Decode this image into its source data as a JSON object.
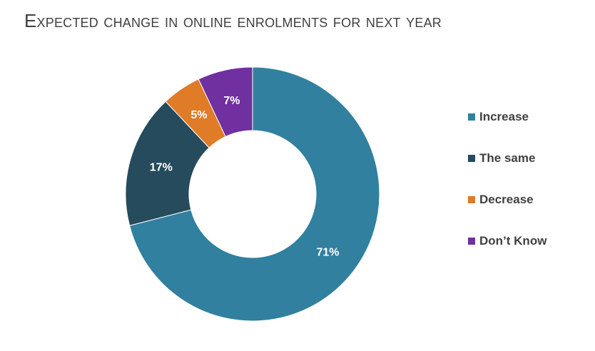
{
  "chart_data": {
    "type": "pie",
    "title": "Expected change in online enrolments for next year",
    "categories": [
      "Increase",
      "The same",
      "Decrease",
      "Don’t Know"
    ],
    "values": [
      71,
      17,
      5,
      7
    ],
    "data_labels": [
      "71%",
      "17%",
      "5%",
      "7%"
    ],
    "colors": [
      "#31809f",
      "#254b5c",
      "#e07b27",
      "#7030a0"
    ],
    "donut": true,
    "legend": "right"
  }
}
